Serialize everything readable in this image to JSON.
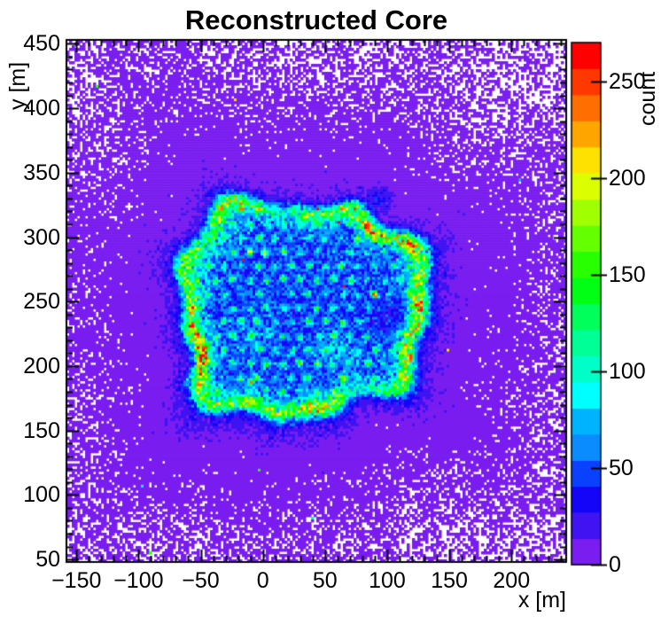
{
  "chart_data": {
    "type": "heatmap",
    "title": "Reconstructed Core",
    "xlabel": "x [m]",
    "ylabel": "y [m]",
    "zlabel": "count",
    "x_range": [
      -158,
      244
    ],
    "y_range": [
      48,
      453
    ],
    "x_major_ticks": [
      -150,
      -100,
      -50,
      0,
      50,
      100,
      150,
      200
    ],
    "x_tick_labels": [
      "−150",
      "−100",
      "−50",
      "0",
      "50",
      "100",
      "150",
      "200"
    ],
    "y_major_ticks": [
      50,
      100,
      150,
      200,
      250,
      300,
      350,
      400,
      450
    ],
    "y_tick_labels": [
      "50",
      "100",
      "150",
      "200",
      "250",
      "300",
      "350",
      "400",
      "450"
    ],
    "minor_tick_step": 10,
    "z_ticks": [
      0,
      50,
      100,
      150,
      200,
      250
    ],
    "z_tick_labels": [
      "0",
      "50",
      "100",
      "150",
      "200",
      "250"
    ],
    "z_max": 270,
    "grid": false,
    "legend_position": "right-colorbar",
    "empty_bin_color": "#ffffff",
    "frame_color": "#000000",
    "palette": [
      "#7a1df0",
      "#3f13f2",
      "#1505f8",
      "#0a41ff",
      "#0a8cff",
      "#00b3ff",
      "#00ffff",
      "#00ffc8",
      "#00ff96",
      "#00ff5a",
      "#00ff14",
      "#28ff00",
      "#64ff00",
      "#a0ff00",
      "#dcff00",
      "#ffe100",
      "#ffa500",
      "#ff6e00",
      "#ff3700",
      "#ff0000"
    ],
    "model": {
      "bins": [
        188,
        196
      ],
      "core": {
        "cx": 30,
        "cy": 245,
        "ax": 95,
        "ay": 80,
        "power": 3,
        "boundary_harmonics": [
          [
            3,
            0.055,
            1.2
          ],
          [
            7,
            0.05,
            -0.5
          ],
          [
            11,
            0.04,
            2.6
          ]
        ]
      },
      "outer": {
        "floor": 0.25,
        "near_amp": 30,
        "near_decay": 6.5,
        "far_amp": 6,
        "far_decay": 1.6,
        "bottom_boost": 0.3
      },
      "interior": {
        "base": 46,
        "rim_amp": 20,
        "rim_pos": 0.93,
        "rim_width": 0.16
      },
      "ring": {
        "amp": 95,
        "center": 0.965,
        "width": 0.075,
        "min_amp": 35,
        "harmonics": [
          [
            2,
            0.28,
            0.8
          ],
          [
            5,
            0.22,
            2.9
          ],
          [
            9,
            0.15,
            1.1
          ]
        ]
      },
      "hole": {
        "x": 106,
        "y": 237,
        "sx": 16,
        "sy": 14,
        "depth": 20,
        "dot_exclusion_rx": 18,
        "dot_exclusion_ry": 16
      },
      "noise": {
        "mult_min": 0.58,
        "mult_span": 0.84,
        "outlier_prob": 0.0006
      },
      "clouds": [
        {
          "x": 60,
          "y": 212,
          "sx": 20,
          "sy": 13,
          "a": 26
        },
        {
          "x": -6,
          "y": 224,
          "sx": 15,
          "sy": 11,
          "a": 22
        },
        {
          "x": -50,
          "y": 268,
          "sx": 11,
          "sy": 15,
          "a": 18
        },
        {
          "x": 55,
          "y": 174,
          "sx": 17,
          "sy": 9,
          "a": 24
        },
        {
          "x": -20,
          "y": 306,
          "sx": 13,
          "sy": 9,
          "a": 16
        },
        {
          "x": 117,
          "y": 293,
          "sx": 7,
          "sy": 11,
          "a": 55
        },
        {
          "x": -58,
          "y": 188,
          "sx": 8,
          "sy": 7,
          "a": 40
        },
        {
          "x": 95,
          "y": 330,
          "sx": 8,
          "sy": 7,
          "a": 30
        }
      ],
      "detector_array": {
        "pitch_x": 13.5,
        "row_dy": 10.8,
        "jitter": 1.2,
        "skip_prob": 0.05,
        "amp_min": 45,
        "amp_span": 75,
        "amp_pow": 1.4,
        "bright_prob": 0.06,
        "bright_factor": 1.45,
        "max_d": 0.92,
        "sigma": 1.7
      },
      "hot_dots": [
        {
          "x": 89,
          "y": 256,
          "v": 235
        },
        {
          "x": 119,
          "y": 207,
          "v": 262
        },
        {
          "x": 118,
          "y": 293,
          "v": 225
        },
        {
          "x": 34,
          "y": 315,
          "v": 205
        },
        {
          "x": -10,
          "y": 188,
          "v": 205
        },
        {
          "x": 65,
          "y": 190,
          "v": 212
        },
        {
          "x": 117,
          "y": 306,
          "v": 215
        },
        {
          "x": -57,
          "y": 243,
          "v": 200
        }
      ]
    }
  }
}
